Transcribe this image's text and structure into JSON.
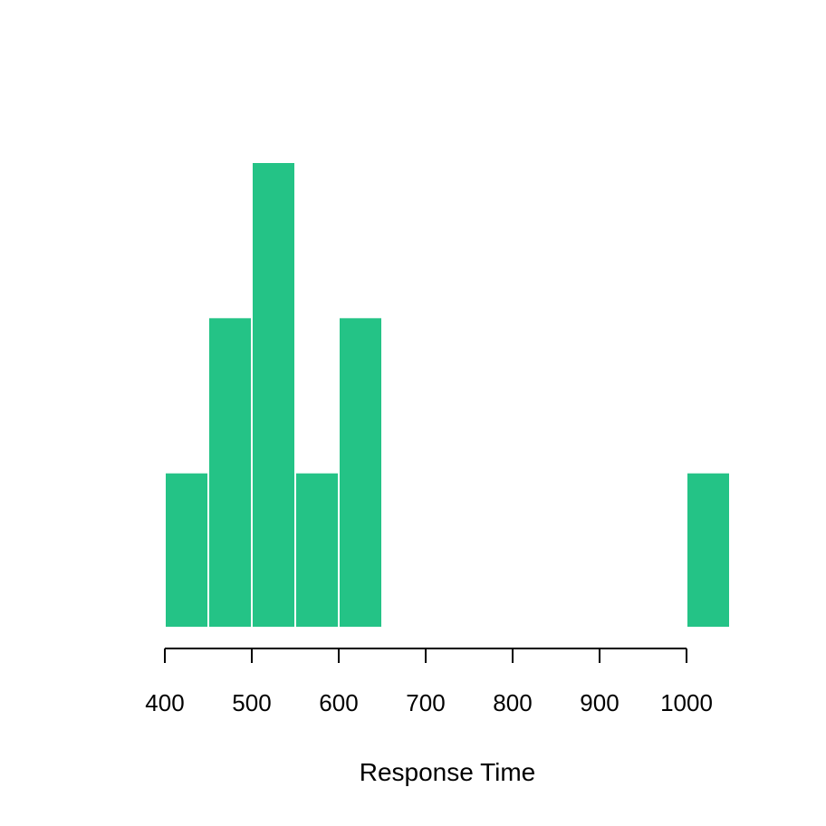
{
  "chart_data": {
    "type": "bar",
    "title": "",
    "xlabel": "Response Time",
    "ylabel": "",
    "bins": [
      {
        "x0": 400,
        "x1": 450,
        "count": 1
      },
      {
        "x0": 450,
        "x1": 500,
        "count": 2
      },
      {
        "x0": 500,
        "x1": 550,
        "count": 3
      },
      {
        "x0": 550,
        "x1": 600,
        "count": 1
      },
      {
        "x0": 600,
        "x1": 650,
        "count": 2
      },
      {
        "x0": 1000,
        "x1": 1050,
        "count": 1
      }
    ],
    "x_ticks": [
      400,
      500,
      600,
      700,
      800,
      900,
      1000
    ],
    "x_tick_labels": [
      "400",
      "500",
      "600",
      "700",
      "800",
      "900",
      "1000"
    ],
    "xlim": [
      400,
      1050
    ],
    "ylim": [
      0,
      3
    ],
    "bar_color": "#24c386",
    "bar_edge_color": "#ffffff",
    "grid": false,
    "y_axis_visible": false
  }
}
